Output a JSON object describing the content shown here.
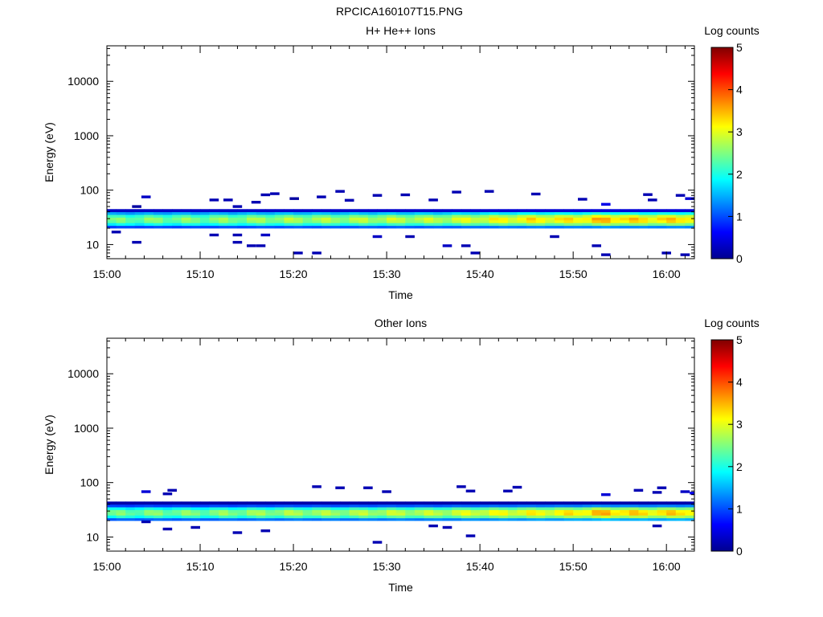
{
  "figure_title": "RPCICA160107T15.PNG",
  "chart_data": [
    {
      "type": "heatmap",
      "title": "H+ He++ Ions",
      "xlabel": "Time",
      "ylabel": "Energy (eV)",
      "colorbar_label": "Log counts",
      "colorbar_ticks": [
        "0",
        "1",
        "2",
        "3",
        "4",
        "5"
      ],
      "clim": [
        0,
        5
      ],
      "xlim_minutes": [
        0,
        63
      ],
      "x_ticks": [
        {
          "minutes": 0,
          "label": "15:00"
        },
        {
          "minutes": 10,
          "label": "15:10"
        },
        {
          "minutes": 20,
          "label": "15:20"
        },
        {
          "minutes": 30,
          "label": "15:30"
        },
        {
          "minutes": 40,
          "label": "15:40"
        },
        {
          "minutes": 50,
          "label": "15:50"
        },
        {
          "minutes": 60,
          "label": "16:00"
        }
      ],
      "y_scale": "log",
      "ylim": [
        5.5,
        45000
      ],
      "y_ticks": [
        {
          "value": 10,
          "label": "10"
        },
        {
          "value": 100,
          "label": "100"
        },
        {
          "value": 1000,
          "label": "1000"
        },
        {
          "value": 10000,
          "label": "10000"
        }
      ],
      "band_energy_range_eV": [
        20,
        42
      ],
      "band_peak_energy_eV": 29,
      "band_peak_log_counts_by_time": [
        [
          0,
          2.4
        ],
        [
          5,
          2.5
        ],
        [
          10,
          2.5
        ],
        [
          15,
          2.6
        ],
        [
          20,
          2.7
        ],
        [
          25,
          2.7
        ],
        [
          30,
          2.8
        ],
        [
          35,
          2.8
        ],
        [
          40,
          3.0
        ],
        [
          45,
          3.2
        ],
        [
          50,
          3.2
        ],
        [
          53,
          3.5
        ],
        [
          57,
          3.3
        ],
        [
          60,
          3.3
        ],
        [
          63,
          3.4
        ]
      ],
      "sparse_counts": [
        {
          "t": 3.7,
          "e": 75,
          "log_counts": 0.3
        },
        {
          "t": 2.7,
          "e": 50,
          "log_counts": 0.1
        },
        {
          "t": 0.5,
          "e": 17,
          "log_counts": 0.2
        },
        {
          "t": 2.7,
          "e": 11,
          "log_counts": 0.2
        },
        {
          "t": 11,
          "e": 66,
          "log_counts": 0.2
        },
        {
          "t": 12.5,
          "e": 66,
          "log_counts": 0.2
        },
        {
          "t": 13.5,
          "e": 50,
          "log_counts": 0.2
        },
        {
          "t": 15.5,
          "e": 60,
          "log_counts": 0.2
        },
        {
          "t": 16.5,
          "e": 82,
          "log_counts": 0.2
        },
        {
          "t": 17.5,
          "e": 86,
          "log_counts": 0.2
        },
        {
          "t": 19.6,
          "e": 70,
          "log_counts": 0.1
        },
        {
          "t": 22.5,
          "e": 75,
          "log_counts": 0.2
        },
        {
          "t": 24.5,
          "e": 95,
          "log_counts": 0.2
        },
        {
          "t": 25.5,
          "e": 65,
          "log_counts": 0.2
        },
        {
          "t": 28.5,
          "e": 80,
          "log_counts": 0.2
        },
        {
          "t": 31.5,
          "e": 82,
          "log_counts": 0.2
        },
        {
          "t": 34.5,
          "e": 66,
          "log_counts": 0.2
        },
        {
          "t": 37,
          "e": 92,
          "log_counts": 0.2
        },
        {
          "t": 40.5,
          "e": 95,
          "log_counts": 0.2
        },
        {
          "t": 45.5,
          "e": 85,
          "log_counts": 0.2
        },
        {
          "t": 50.5,
          "e": 68,
          "log_counts": 0.2
        },
        {
          "t": 53,
          "e": 55,
          "log_counts": 0.5
        },
        {
          "t": 57.5,
          "e": 83,
          "log_counts": 0.2
        },
        {
          "t": 58,
          "e": 66,
          "log_counts": 0.2
        },
        {
          "t": 61,
          "e": 80,
          "log_counts": 0.2
        },
        {
          "t": 62,
          "e": 70,
          "log_counts": 0.4
        },
        {
          "t": 63,
          "e": 72,
          "log_counts": 0.4
        },
        {
          "t": 11,
          "e": 15,
          "log_counts": 0.2
        },
        {
          "t": 13.5,
          "e": 15,
          "log_counts": 0.2
        },
        {
          "t": 13.5,
          "e": 11,
          "log_counts": 0.2
        },
        {
          "t": 15,
          "e": 9.5,
          "log_counts": 0.2
        },
        {
          "t": 16,
          "e": 9.5,
          "log_counts": 0.2
        },
        {
          "t": 16.5,
          "e": 15,
          "log_counts": 0.3
        },
        {
          "t": 20,
          "e": 7,
          "log_counts": 0.2
        },
        {
          "t": 22,
          "e": 7,
          "log_counts": 0.2
        },
        {
          "t": 28.5,
          "e": 14,
          "log_counts": 0.3
        },
        {
          "t": 32,
          "e": 14,
          "log_counts": 0.2
        },
        {
          "t": 36,
          "e": 9.5,
          "log_counts": 0.3
        },
        {
          "t": 38,
          "e": 9.5,
          "log_counts": 0.2
        },
        {
          "t": 39,
          "e": 7,
          "log_counts": 0.2
        },
        {
          "t": 47.5,
          "e": 14,
          "log_counts": 0.2
        },
        {
          "t": 52,
          "e": 9.5,
          "log_counts": 0.2
        },
        {
          "t": 53,
          "e": 6.5,
          "log_counts": 0.2
        },
        {
          "t": 59.5,
          "e": 7,
          "log_counts": 0.2
        },
        {
          "t": 61.5,
          "e": 6.5,
          "log_counts": 0.2
        },
        {
          "t": 63,
          "e": 9.5,
          "log_counts": 0.3
        }
      ]
    },
    {
      "type": "heatmap",
      "title": "Other Ions",
      "xlabel": "Time",
      "ylabel": "Energy (eV)",
      "colorbar_label": "Log counts",
      "colorbar_ticks": [
        "0",
        "1",
        "2",
        "3",
        "4",
        "5"
      ],
      "clim": [
        0,
        5
      ],
      "xlim_minutes": [
        0,
        63
      ],
      "x_ticks": [
        {
          "minutes": 0,
          "label": "15:00"
        },
        {
          "minutes": 10,
          "label": "15:10"
        },
        {
          "minutes": 20,
          "label": "15:20"
        },
        {
          "minutes": 30,
          "label": "15:30"
        },
        {
          "minutes": 40,
          "label": "15:40"
        },
        {
          "minutes": 50,
          "label": "15:50"
        },
        {
          "minutes": 60,
          "label": "16:00"
        }
      ],
      "y_scale": "log",
      "ylim": [
        5.5,
        45000
      ],
      "y_ticks": [
        {
          "value": 10,
          "label": "10"
        },
        {
          "value": 100,
          "label": "100"
        },
        {
          "value": 1000,
          "label": "1000"
        },
        {
          "value": 10000,
          "label": "10000"
        }
      ],
      "band_energy_range_eV": [
        20,
        40
      ],
      "band_peak_energy_eV": 28,
      "band_peak_log_counts_by_time": [
        [
          0,
          2.4
        ],
        [
          5,
          2.5
        ],
        [
          10,
          2.5
        ],
        [
          15,
          2.6
        ],
        [
          20,
          2.7
        ],
        [
          25,
          2.7
        ],
        [
          30,
          2.8
        ],
        [
          35,
          2.8
        ],
        [
          40,
          3.0
        ],
        [
          45,
          3.1
        ],
        [
          50,
          3.2
        ],
        [
          53,
          3.5
        ],
        [
          57,
          3.3
        ],
        [
          60,
          3.3
        ],
        [
          63,
          3.4
        ]
      ],
      "sparse_counts": [
        {
          "t": 3.7,
          "e": 68,
          "log_counts": 0.4
        },
        {
          "t": 6.5,
          "e": 72,
          "log_counts": 0.2
        },
        {
          "t": 6.0,
          "e": 62,
          "log_counts": 0.2
        },
        {
          "t": 22,
          "e": 84,
          "log_counts": 0.2
        },
        {
          "t": 24.5,
          "e": 80,
          "log_counts": 0.2
        },
        {
          "t": 27.5,
          "e": 80,
          "log_counts": 0.2
        },
        {
          "t": 29.5,
          "e": 68,
          "log_counts": 0.2
        },
        {
          "t": 37.5,
          "e": 84,
          "log_counts": 0.2
        },
        {
          "t": 38.5,
          "e": 70,
          "log_counts": 0.2
        },
        {
          "t": 43.5,
          "e": 82,
          "log_counts": 0.2
        },
        {
          "t": 42.5,
          "e": 70,
          "log_counts": 0.2
        },
        {
          "t": 53,
          "e": 60,
          "log_counts": 0.4
        },
        {
          "t": 56.5,
          "e": 72,
          "log_counts": 0.2
        },
        {
          "t": 58.5,
          "e": 66,
          "log_counts": 0.2
        },
        {
          "t": 59,
          "e": 80,
          "log_counts": 0.2
        },
        {
          "t": 61.5,
          "e": 68,
          "log_counts": 0.3
        },
        {
          "t": 62.5,
          "e": 64,
          "log_counts": 0.5
        },
        {
          "t": 63,
          "e": 58,
          "log_counts": 0.4
        },
        {
          "t": 3.7,
          "e": 19,
          "log_counts": 0.2
        },
        {
          "t": 6,
          "e": 14,
          "log_counts": 0.2
        },
        {
          "t": 9,
          "e": 15,
          "log_counts": 0.2
        },
        {
          "t": 13.5,
          "e": 12,
          "log_counts": 0.2
        },
        {
          "t": 16.5,
          "e": 13,
          "log_counts": 0.2
        },
        {
          "t": 28.5,
          "e": 8,
          "log_counts": 0.2
        },
        {
          "t": 34.5,
          "e": 16,
          "log_counts": 0.2
        },
        {
          "t": 36,
          "e": 15,
          "log_counts": 0.2
        },
        {
          "t": 38.5,
          "e": 10.5,
          "log_counts": 0.2
        },
        {
          "t": 58.5,
          "e": 16,
          "log_counts": 0.2
        }
      ]
    }
  ]
}
